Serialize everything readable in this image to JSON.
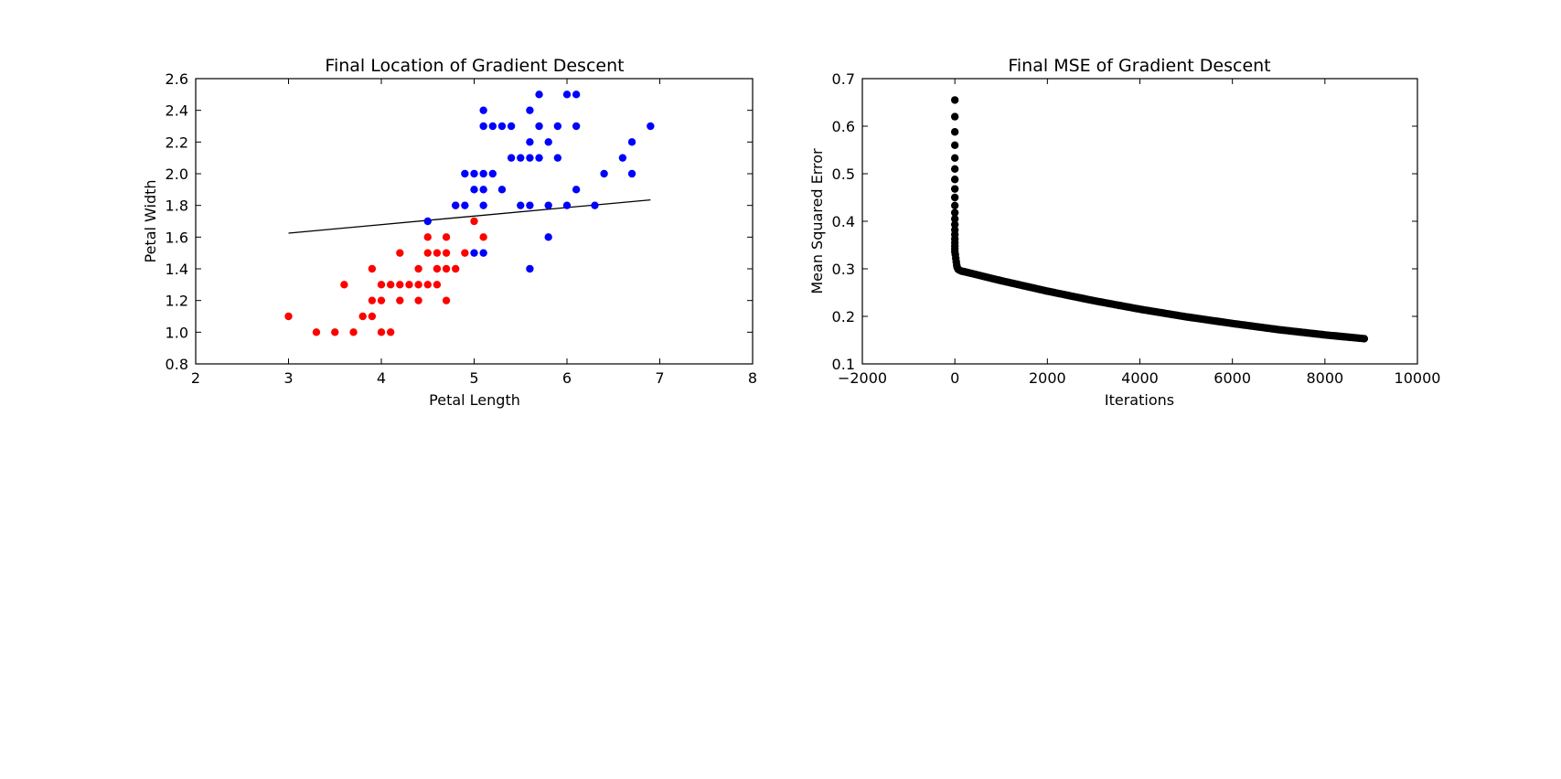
{
  "chart_data": [
    {
      "type": "scatter",
      "title": "Final Location of Gradient Descent",
      "xlabel": "Petal Length",
      "ylabel": "Petal Width",
      "xlim": [
        2,
        8
      ],
      "ylim": [
        0.8,
        2.6
      ],
      "xticks": [
        "2",
        "3",
        "4",
        "5",
        "6",
        "7",
        "8"
      ],
      "yticks": [
        "0.8",
        "1.0",
        "1.2",
        "1.4",
        "1.6",
        "1.8",
        "2.0",
        "2.2",
        "2.4",
        "2.6"
      ],
      "grid": false,
      "series": [
        {
          "color": "#ff0000",
          "points": [
            [
              3.0,
              1.1
            ],
            [
              3.3,
              1.0
            ],
            [
              3.5,
              1.0
            ],
            [
              3.7,
              1.0
            ],
            [
              3.6,
              1.3
            ],
            [
              3.8,
              1.1
            ],
            [
              3.9,
              1.1
            ],
            [
              3.9,
              1.2
            ],
            [
              3.9,
              1.4
            ],
            [
              4.0,
              1.0
            ],
            [
              4.0,
              1.2
            ],
            [
              4.0,
              1.3
            ],
            [
              4.1,
              1.0
            ],
            [
              4.1,
              1.3
            ],
            [
              4.2,
              1.2
            ],
            [
              4.2,
              1.3
            ],
            [
              4.2,
              1.5
            ],
            [
              4.3,
              1.3
            ],
            [
              4.4,
              1.2
            ],
            [
              4.4,
              1.3
            ],
            [
              4.4,
              1.4
            ],
            [
              4.5,
              1.3
            ],
            [
              4.5,
              1.5
            ],
            [
              4.5,
              1.6
            ],
            [
              4.6,
              1.3
            ],
            [
              4.6,
              1.4
            ],
            [
              4.6,
              1.5
            ],
            [
              4.7,
              1.2
            ],
            [
              4.7,
              1.4
            ],
            [
              4.7,
              1.5
            ],
            [
              4.7,
              1.6
            ],
            [
              4.8,
              1.4
            ],
            [
              4.8,
              1.8
            ],
            [
              4.9,
              1.5
            ],
            [
              5.0,
              1.7
            ],
            [
              5.1,
              1.6
            ]
          ]
        },
        {
          "color": "#0000ff",
          "points": [
            [
              4.5,
              1.7
            ],
            [
              4.8,
              1.8
            ],
            [
              4.9,
              1.8
            ],
            [
              4.9,
              2.0
            ],
            [
              5.0,
              1.5
            ],
            [
              5.0,
              1.9
            ],
            [
              5.0,
              2.0
            ],
            [
              5.1,
              1.5
            ],
            [
              5.1,
              1.8
            ],
            [
              5.1,
              1.9
            ],
            [
              5.1,
              2.0
            ],
            [
              5.1,
              2.3
            ],
            [
              5.1,
              2.4
            ],
            [
              5.2,
              2.0
            ],
            [
              5.2,
              2.3
            ],
            [
              5.3,
              1.9
            ],
            [
              5.3,
              2.3
            ],
            [
              5.4,
              2.1
            ],
            [
              5.4,
              2.3
            ],
            [
              5.5,
              1.8
            ],
            [
              5.5,
              2.1
            ],
            [
              5.6,
              1.4
            ],
            [
              5.6,
              1.8
            ],
            [
              5.6,
              2.1
            ],
            [
              5.6,
              2.2
            ],
            [
              5.6,
              2.4
            ],
            [
              5.7,
              2.1
            ],
            [
              5.7,
              2.3
            ],
            [
              5.7,
              2.5
            ],
            [
              5.8,
              1.6
            ],
            [
              5.8,
              1.8
            ],
            [
              5.8,
              2.2
            ],
            [
              5.9,
              2.1
            ],
            [
              5.9,
              2.3
            ],
            [
              6.0,
              1.8
            ],
            [
              6.0,
              2.5
            ],
            [
              6.1,
              1.9
            ],
            [
              6.1,
              2.3
            ],
            [
              6.1,
              2.5
            ],
            [
              6.3,
              1.8
            ],
            [
              6.4,
              2.0
            ],
            [
              6.6,
              2.1
            ],
            [
              6.7,
              2.0
            ],
            [
              6.7,
              2.2
            ],
            [
              6.9,
              2.3
            ]
          ]
        }
      ],
      "line": {
        "color": "#000000",
        "points": [
          [
            3.0,
            1.625
          ],
          [
            6.9,
            1.835
          ]
        ]
      }
    },
    {
      "type": "scatter",
      "title": "Final MSE of Gradient Descent",
      "xlabel": "Iterations",
      "ylabel": "Mean Squared Error",
      "xlim": [
        -2000,
        10000
      ],
      "ylim": [
        0.1,
        0.7
      ],
      "xticks": [
        "−2000",
        "0",
        "2000",
        "4000",
        "6000",
        "8000",
        "10000"
      ],
      "yticks": [
        "0.1",
        "0.2",
        "0.3",
        "0.4",
        "0.5",
        "0.6",
        "0.7"
      ],
      "grid": false,
      "series": [
        {
          "color": "#000000",
          "initial_points": [
            [
              0,
              0.655
            ],
            [
              0,
              0.62
            ],
            [
              0,
              0.588
            ],
            [
              0,
              0.56
            ],
            [
              0,
              0.533
            ],
            [
              0,
              0.51
            ],
            [
              0,
              0.488
            ],
            [
              0,
              0.468
            ],
            [
              0,
              0.45
            ],
            [
              0,
              0.433
            ],
            [
              0,
              0.418
            ],
            [
              0,
              0.405
            ],
            [
              0,
              0.393
            ],
            [
              0,
              0.382
            ],
            [
              0,
              0.372
            ],
            [
              0,
              0.363
            ],
            [
              0,
              0.355
            ],
            [
              0,
              0.348
            ],
            [
              0,
              0.342
            ],
            [
              0,
              0.336
            ],
            [
              10,
              0.33
            ],
            [
              20,
              0.322
            ],
            [
              30,
              0.315
            ],
            [
              40,
              0.308
            ],
            [
              50,
              0.303
            ],
            [
              70,
              0.299
            ],
            [
              100,
              0.297
            ],
            [
              150,
              0.295
            ]
          ],
          "curve_points": [
            [
              200,
              0.294
            ],
            [
              1000,
              0.275
            ],
            [
              2000,
              0.253
            ],
            [
              3000,
              0.233
            ],
            [
              4000,
              0.215
            ],
            [
              5000,
              0.199
            ],
            [
              6000,
              0.185
            ],
            [
              7000,
              0.172
            ],
            [
              8000,
              0.161
            ],
            [
              8850,
              0.153
            ]
          ],
          "marker_spacing_iterations": 50
        }
      ]
    }
  ]
}
